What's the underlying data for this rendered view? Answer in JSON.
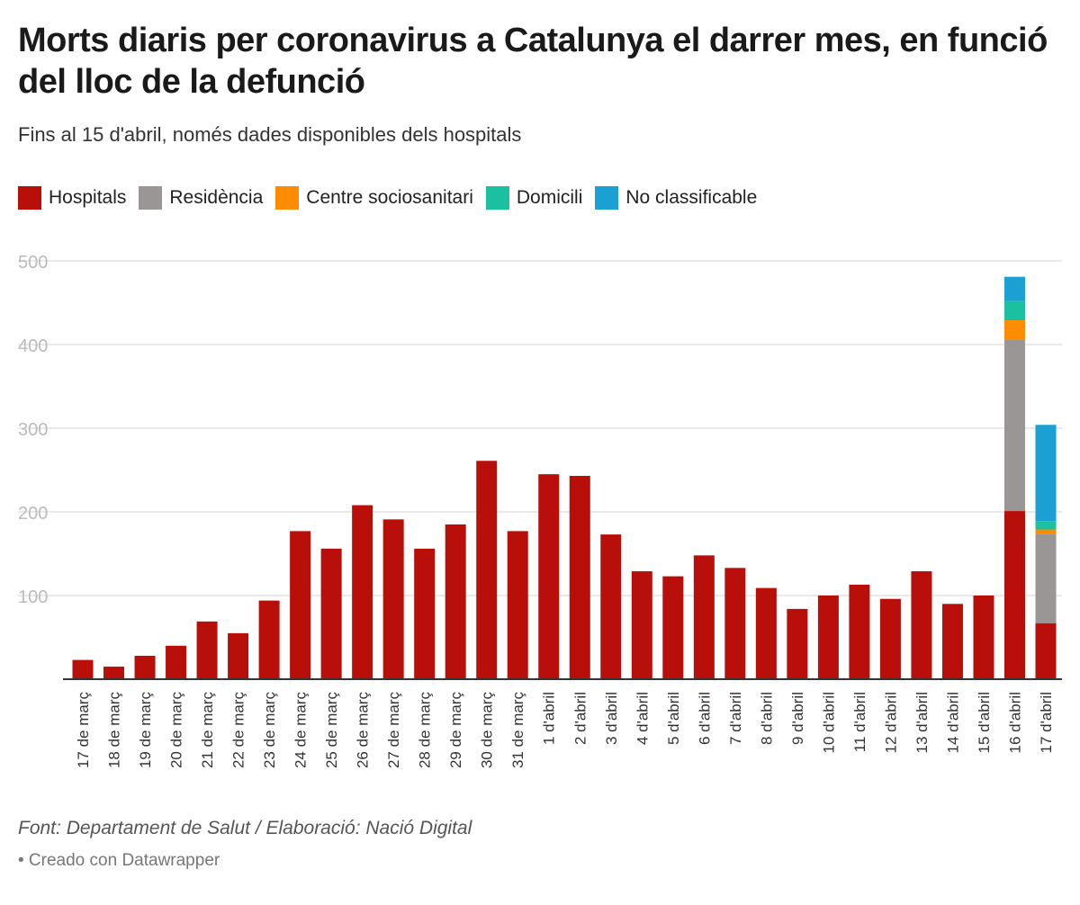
{
  "title": "Morts diaris per coronavirus a Catalunya el darrer mes, en funció del lloc de la defunció",
  "subtitle": "Fins al 15 d'abril, només dades disponibles dels hospitals",
  "source": "Font: Departament de Salut / Elaboració: Nació Digital",
  "credit": "• Creado con Datawrapper",
  "colors": {
    "Hospitals": "#b80f0a",
    "Residència": "#9a9696",
    "Centre sociosanitari": "#ff8c00",
    "Domicili": "#1ac0a0",
    "No classificable": "#1aa0d2",
    "grid": "#e2e2e2",
    "axis": "#333333",
    "tick_label": "#bbbbbb"
  },
  "chart_data": {
    "type": "bar",
    "stacked": true,
    "title": "Morts diaris per coronavirus a Catalunya el darrer mes, en funció del lloc de la defunció",
    "xlabel": "",
    "ylabel": "",
    "ylim": [
      0,
      500
    ],
    "yticks": [
      100,
      200,
      300,
      400,
      500
    ],
    "grid": true,
    "legend": "top-left",
    "categories": [
      "17 de març",
      "18 de març",
      "19 de març",
      "20 de març",
      "21 de març",
      "22 de març",
      "23 de març",
      "24 de març",
      "25 de març",
      "26 de març",
      "27 de març",
      "28 de març",
      "29 de març",
      "30 de març",
      "31 de març",
      "1 d'abril",
      "2 d'abril",
      "3 d'abril",
      "4 d'abril",
      "5 d'abril",
      "6 d'abril",
      "7 d'abril",
      "8 d'abril",
      "9 d'abril",
      "10 d'abril",
      "11 d'abril",
      "12 d'abril",
      "13 d'abril",
      "14 d'abril",
      "15 d'abril",
      "16 d'abril",
      "17 d'abril"
    ],
    "series": [
      {
        "name": "Hospitals",
        "values": [
          23,
          15,
          28,
          40,
          69,
          55,
          94,
          177,
          156,
          208,
          191,
          156,
          185,
          261,
          177,
          245,
          243,
          173,
          129,
          123,
          148,
          133,
          109,
          84,
          100,
          113,
          96,
          129,
          90,
          100,
          201,
          67
        ]
      },
      {
        "name": "Residència",
        "values": [
          0,
          0,
          0,
          0,
          0,
          0,
          0,
          0,
          0,
          0,
          0,
          0,
          0,
          0,
          0,
          0,
          0,
          0,
          0,
          0,
          0,
          0,
          0,
          0,
          0,
          0,
          0,
          0,
          0,
          0,
          205,
          107
        ]
      },
      {
        "name": "Centre sociosanitari",
        "values": [
          0,
          0,
          0,
          0,
          0,
          0,
          0,
          0,
          0,
          0,
          0,
          0,
          0,
          0,
          0,
          0,
          0,
          0,
          0,
          0,
          0,
          0,
          0,
          0,
          0,
          0,
          0,
          0,
          0,
          0,
          23,
          5
        ]
      },
      {
        "name": "Domicili",
        "values": [
          0,
          0,
          0,
          0,
          0,
          0,
          0,
          0,
          0,
          0,
          0,
          0,
          0,
          0,
          0,
          0,
          0,
          0,
          0,
          0,
          0,
          0,
          0,
          0,
          0,
          0,
          0,
          0,
          0,
          0,
          23,
          10
        ]
      },
      {
        "name": "No classificable",
        "values": [
          0,
          0,
          0,
          0,
          0,
          0,
          0,
          0,
          0,
          0,
          0,
          0,
          0,
          0,
          0,
          0,
          0,
          0,
          0,
          0,
          0,
          0,
          0,
          0,
          0,
          0,
          0,
          0,
          0,
          0,
          29,
          115
        ]
      }
    ]
  }
}
